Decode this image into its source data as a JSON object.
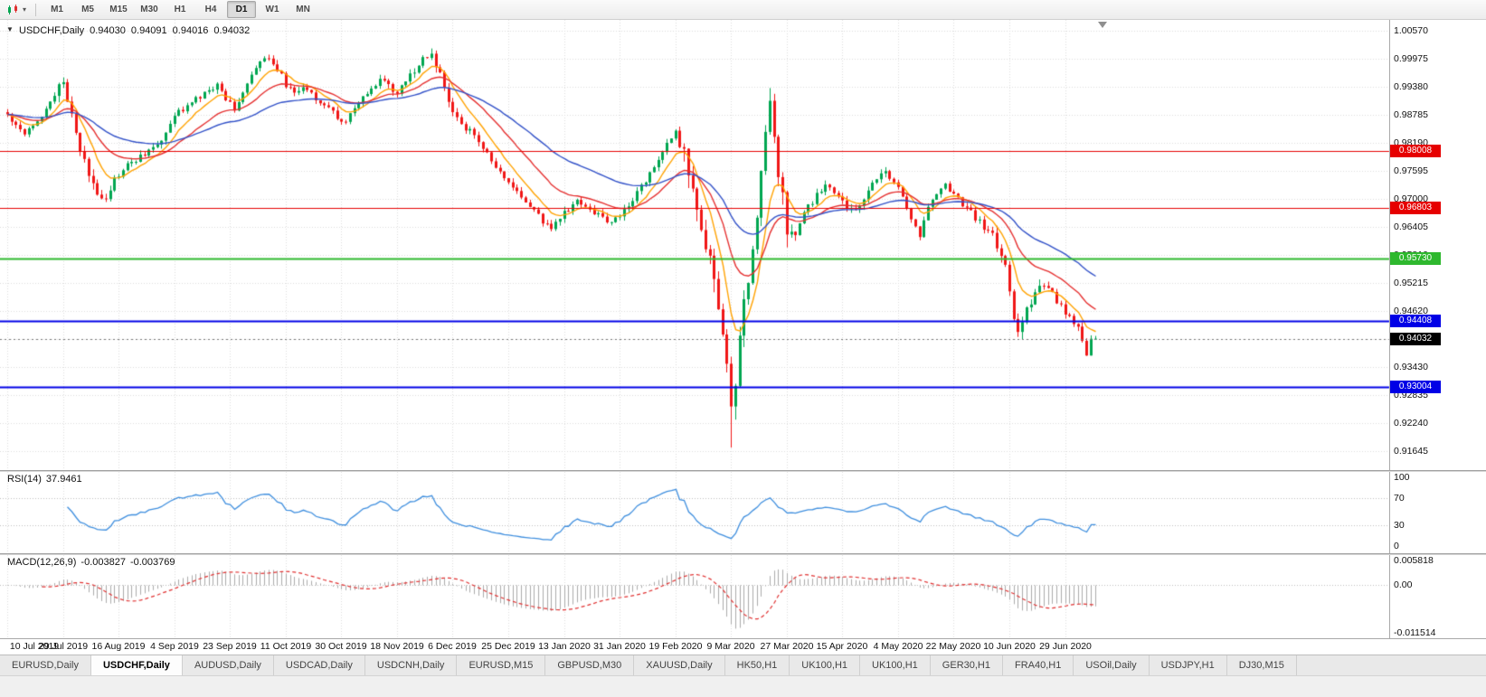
{
  "toolbar": {
    "timeframes": [
      "M1",
      "M5",
      "M15",
      "M30",
      "H1",
      "H4",
      "D1",
      "W1",
      "MN"
    ],
    "active_timeframe": "D1"
  },
  "chart": {
    "title": "USDCHF,Daily",
    "quote": {
      "open": "0.94030",
      "high": "0.94091",
      "low": "0.94016",
      "close": "0.94032"
    },
    "grid_color": "#DCDCDC",
    "price_axis_labels": [
      "1.00570",
      "0.99975",
      "0.99380",
      "0.98785",
      "0.98190",
      "0.97595",
      "0.97000",
      "0.96405",
      "0.95810",
      "0.95215",
      "0.94620",
      "0.94025",
      "0.93430",
      "0.92835",
      "0.92240",
      "0.91645"
    ],
    "levels": [
      {
        "label": "0.98008",
        "price": 0.98008,
        "color": "#E60000",
        "width": 1
      },
      {
        "label": "0.96803",
        "price": 0.96803,
        "color": "#E60000",
        "width": 1
      },
      {
        "label": "0.95730",
        "price": 0.9573,
        "color": "#2EB82E",
        "width": 2
      },
      {
        "label": "0.94408",
        "price": 0.94408,
        "color": "#0000E6",
        "width": 2
      },
      {
        "label": "0.93004",
        "price": 0.93004,
        "color": "#0000E6",
        "width": 2
      }
    ],
    "current_price": {
      "value": 0.94032,
      "label": "0.94032",
      "tag_color": "#000000"
    }
  },
  "indicators": {
    "rsi": {
      "name": "RSI(14)",
      "value": "37.9461",
      "period": 14,
      "color": "#3E8EDE",
      "levels": [
        "100",
        "70",
        "30",
        "0"
      ]
    },
    "macd": {
      "name": "MACD(12,26,9)",
      "main_value": "-0.003827",
      "signal_value": "-0.003769",
      "fast": 12,
      "slow": 26,
      "signal_period": 9,
      "axis": [
        "0.005818",
        "0.00",
        "-0.011514"
      ],
      "histogram_color": "#ABABAB",
      "signal_color": "#E03030"
    }
  },
  "tabs": {
    "active_index": 1,
    "items": [
      "EURUSD,Daily",
      "USDCHF,Daily",
      "AUDUSD,Daily",
      "USDCAD,Daily",
      "USDCNH,Daily",
      "EURUSD,M15",
      "GBPUSD,M30",
      "XAUUSD,Daily",
      "HK50,H1",
      "UK100,H1",
      "UK100,H1",
      "GER30,H1",
      "FRA40,H1",
      "USOil,Daily",
      "USDJPY,H1",
      "DJ30,M15"
    ]
  },
  "chart_data": {
    "type": "candlestick",
    "symbol": "USDCHF",
    "period": "Daily",
    "bars": 255,
    "bars_per_label": 13,
    "bull_color": "#00A651",
    "bear_color": "#F01616",
    "x_labels": [
      "10 Jul 2019",
      "29 Jul 2019",
      "16 Aug 2019",
      "4 Sep 2019",
      "23 Sep 2019",
      "11 Oct 2019",
      "30 Oct 2019",
      "18 Nov 2019",
      "6 Dec 2019",
      "25 Dec 2019",
      "13 Jan 2020",
      "31 Jan 2020",
      "19 Feb 2020",
      "9 Mar 2020",
      "27 Mar 2020",
      "15 Apr 2020",
      "4 May 2020",
      "22 May 2020",
      "10 Jun 2020",
      "29 Jun 2020"
    ],
    "y_axis": {
      "min": 0.91645,
      "max": 1.0057,
      "tick_step": 0.00595
    },
    "last_candle": {
      "open": 0.9403,
      "high": 0.94091,
      "low": 0.94016,
      "close": 0.94032
    },
    "extreme_low": {
      "bar": 169,
      "price": 0.9172
    },
    "extreme_high": {
      "bar": 99,
      "price": 1.0008
    },
    "spike_high": {
      "bar": 178,
      "price": 0.9902
    },
    "moving_averages": [
      {
        "period": 8,
        "color": "#FFA200"
      },
      {
        "period": 20,
        "color": "#E53030"
      },
      {
        "period": 45,
        "color": "#3352C8"
      }
    ],
    "price_path_anchors": [
      [
        0,
        0.9878
      ],
      [
        2,
        0.9858
      ],
      [
        4,
        0.9842
      ],
      [
        6,
        0.986
      ],
      [
        8,
        0.9878
      ],
      [
        10,
        0.9906
      ],
      [
        12,
        0.9934
      ],
      [
        13,
        0.9946
      ],
      [
        15,
        0.9884
      ],
      [
        17,
        0.98
      ],
      [
        19,
        0.9752
      ],
      [
        21,
        0.9716
      ],
      [
        23,
        0.9704
      ],
      [
        25,
        0.974
      ],
      [
        28,
        0.977
      ],
      [
        31,
        0.979
      ],
      [
        34,
        0.9808
      ],
      [
        36,
        0.9826
      ],
      [
        38,
        0.9858
      ],
      [
        40,
        0.9886
      ],
      [
        43,
        0.9904
      ],
      [
        46,
        0.9922
      ],
      [
        49,
        0.9942
      ],
      [
        51,
        0.9914
      ],
      [
        53,
        0.9894
      ],
      [
        55,
        0.9924
      ],
      [
        57,
        0.996
      ],
      [
        59,
        0.9988
      ],
      [
        61,
        1.0002
      ],
      [
        63,
        0.9976
      ],
      [
        65,
        0.9944
      ],
      [
        67,
        0.992
      ],
      [
        69,
        0.9942
      ],
      [
        71,
        0.9924
      ],
      [
        73,
        0.9908
      ],
      [
        75,
        0.9892
      ],
      [
        77,
        0.9874
      ],
      [
        79,
        0.9864
      ],
      [
        81,
        0.989
      ],
      [
        83,
        0.9912
      ],
      [
        85,
        0.9934
      ],
      [
        87,
        0.9954
      ],
      [
        89,
        0.994
      ],
      [
        91,
        0.9922
      ],
      [
        93,
        0.995
      ],
      [
        95,
        0.9974
      ],
      [
        97,
        0.9994
      ],
      [
        99,
        1.0008
      ],
      [
        101,
        0.9962
      ],
      [
        103,
        0.9902
      ],
      [
        105,
        0.987
      ],
      [
        107,
        0.985
      ],
      [
        109,
        0.9834
      ],
      [
        111,
        0.981
      ],
      [
        113,
        0.978
      ],
      [
        115,
        0.9754
      ],
      [
        117,
        0.9732
      ],
      [
        119,
        0.9714
      ],
      [
        121,
        0.9694
      ],
      [
        123,
        0.9674
      ],
      [
        125,
        0.9652
      ],
      [
        127,
        0.964
      ],
      [
        129,
        0.966
      ],
      [
        131,
        0.9678
      ],
      [
        133,
        0.9694
      ],
      [
        135,
        0.9684
      ],
      [
        137,
        0.9672
      ],
      [
        139,
        0.966
      ],
      [
        141,
        0.965
      ],
      [
        143,
        0.9665
      ],
      [
        145,
        0.969
      ],
      [
        147,
        0.9714
      ],
      [
        149,
        0.974
      ],
      [
        151,
        0.977
      ],
      [
        153,
        0.9802
      ],
      [
        155,
        0.9826
      ],
      [
        156,
        0.984
      ],
      [
        158,
        0.9792
      ],
      [
        160,
        0.9702
      ],
      [
        162,
        0.9642
      ],
      [
        164,
        0.9562
      ],
      [
        166,
        0.9482
      ],
      [
        167,
        0.9402
      ],
      [
        168,
        0.9332
      ],
      [
        169,
        0.9255
      ],
      [
        170,
        0.9315
      ],
      [
        171,
        0.9405
      ],
      [
        172,
        0.9482
      ],
      [
        173,
        0.9532
      ],
      [
        174,
        0.9592
      ],
      [
        175,
        0.9662
      ],
      [
        176,
        0.9762
      ],
      [
        177,
        0.9862
      ],
      [
        178,
        0.9892
      ],
      [
        179,
        0.9822
      ],
      [
        180,
        0.9752
      ],
      [
        181,
        0.9702
      ],
      [
        182,
        0.9642
      ],
      [
        183,
        0.9618
      ],
      [
        185,
        0.9648
      ],
      [
        187,
        0.9682
      ],
      [
        189,
        0.9706
      ],
      [
        191,
        0.9732
      ],
      [
        193,
        0.9714
      ],
      [
        195,
        0.9692
      ],
      [
        197,
        0.9674
      ],
      [
        199,
        0.9692
      ],
      [
        201,
        0.9716
      ],
      [
        203,
        0.9742
      ],
      [
        205,
        0.9758
      ],
      [
        207,
        0.9736
      ],
      [
        209,
        0.9706
      ],
      [
        211,
        0.9662
      ],
      [
        213,
        0.9622
      ],
      [
        215,
        0.9682
      ],
      [
        217,
        0.9716
      ],
      [
        219,
        0.973
      ],
      [
        221,
        0.971
      ],
      [
        223,
        0.969
      ],
      [
        225,
        0.967
      ],
      [
        227,
        0.965
      ],
      [
        229,
        0.9632
      ],
      [
        231,
        0.9602
      ],
      [
        233,
        0.9562
      ],
      [
        234,
        0.9512
      ],
      [
        235,
        0.9452
      ],
      [
        236,
        0.9412
      ],
      [
        237,
        0.9442
      ],
      [
        238,
        0.9472
      ],
      [
        240,
        0.9502
      ],
      [
        242,
        0.9516
      ],
      [
        244,
        0.9496
      ],
      [
        246,
        0.9472
      ],
      [
        248,
        0.9446
      ],
      [
        250,
        0.9422
      ],
      [
        251,
        0.9398
      ],
      [
        252,
        0.9372
      ],
      [
        253,
        0.9403
      ],
      [
        254,
        0.94032
      ]
    ]
  }
}
